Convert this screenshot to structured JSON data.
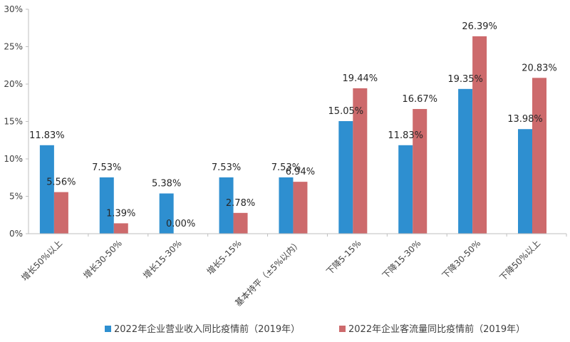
{
  "chart_data": {
    "type": "bar",
    "categories": [
      "增长50%以上",
      "增长30-50%",
      "增长15-30%",
      "增长5-15%",
      "基本持平（±5%以内）",
      "下降5-15%",
      "下降15-30%",
      "下降30-50%",
      "下降50%以上"
    ],
    "series": [
      {
        "name": "2022年企业营业收入同比疫情前（2019年）",
        "color": "#2e8fd0",
        "values": [
          11.83,
          7.53,
          5.38,
          7.53,
          7.53,
          15.05,
          11.83,
          19.35,
          13.98
        ],
        "labels": [
          "11.83%",
          "7.53%",
          "5.38%",
          "7.53%",
          "7.53%",
          "15.05%",
          "11.83%",
          "19.35%",
          "13.98%"
        ]
      },
      {
        "name": "2022年企业客流量同比疫情前（2019年）",
        "color": "#cd6a6c",
        "values": [
          5.56,
          1.39,
          0.0,
          2.78,
          6.94,
          19.44,
          16.67,
          26.39,
          20.83
        ],
        "labels": [
          "5.56%",
          "1.39%",
          "0.00%",
          "2.78%",
          "6.94%",
          "19.44%",
          "16.67%",
          "26.39%",
          "20.83%"
        ]
      }
    ],
    "yticks": [
      {
        "value": 0,
        "label": "0%"
      },
      {
        "value": 5,
        "label": "5%"
      },
      {
        "value": 10,
        "label": "10%"
      },
      {
        "value": 15,
        "label": "15%"
      },
      {
        "value": 20,
        "label": "20%"
      },
      {
        "value": 25,
        "label": "25%"
      },
      {
        "value": 30,
        "label": "30%"
      }
    ],
    "ylim": [
      0,
      30
    ],
    "grid": false,
    "legend_position": "bottom",
    "title": "",
    "xlabel": "",
    "ylabel": ""
  }
}
